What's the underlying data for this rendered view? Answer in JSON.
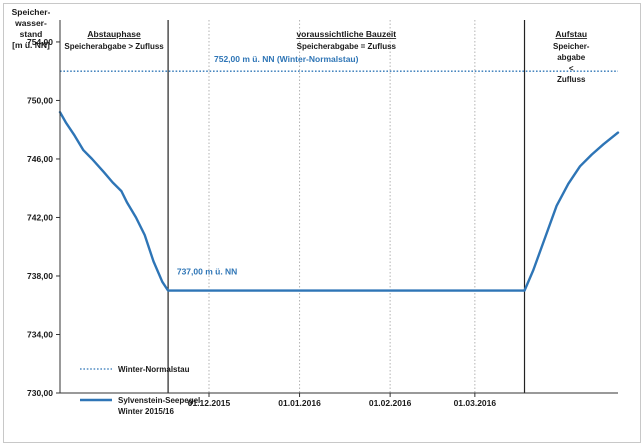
{
  "chart_data": {
    "type": "line",
    "ylabel_lines": [
      "Speicher-",
      "wasser-",
      "stand",
      "[m ü. NN]"
    ],
    "ylim": [
      730,
      755.5
    ],
    "yticks": [
      730,
      734,
      738,
      742,
      746,
      750,
      754
    ],
    "ytick_labels": [
      "730,00",
      "734,00",
      "738,00",
      "742,00",
      "746,00",
      "750,00",
      "754,00"
    ],
    "x_unit": "date",
    "xlim": [
      "2015-10-11",
      "2016-04-19"
    ],
    "xticks": [
      {
        "date": "2015-12-01",
        "label": "01.12.2015"
      },
      {
        "date": "2016-01-01",
        "label": "01.01.2016"
      },
      {
        "date": "2016-02-01",
        "label": "01.02.2016"
      },
      {
        "date": "2016-03-01",
        "label": "01.03.2016"
      }
    ],
    "grid": {
      "vertical": true,
      "horizontal": false
    },
    "phase_boundaries": [
      "2015-11-17",
      "2016-03-18"
    ],
    "phases": [
      {
        "title": "Abstauphase",
        "lines": [
          "Speicherabgabe > Zufluss"
        ],
        "start": "2015-10-11",
        "end": "2015-11-17"
      },
      {
        "title": "voraussichtliche Bauzeit",
        "lines": [
          "Speicherabgabe = Zufluss"
        ],
        "start": "2015-11-17",
        "end": "2016-03-18"
      },
      {
        "title": "Aufstau",
        "lines": [
          "Speicher-",
          "abgabe",
          "<",
          "Zufluss"
        ],
        "start": "2016-03-18",
        "end": "2016-04-19"
      }
    ],
    "reference_line": {
      "y": 752.0,
      "label": "752,00 m ü. NN (Winter-Normalstau)",
      "color": "#2e75b6",
      "style": "dotted"
    },
    "series": [
      {
        "name": "Sylvenstein-Seepegel Winter 2015/16",
        "color": "#2e75b6",
        "points": [
          [
            "2015-10-11",
            749.2
          ],
          [
            "2015-10-13",
            748.5
          ],
          [
            "2015-10-16",
            747.6
          ],
          [
            "2015-10-19",
            746.6
          ],
          [
            "2015-10-22",
            746.0
          ],
          [
            "2015-10-26",
            745.1
          ],
          [
            "2015-10-29",
            744.4
          ],
          [
            "2015-11-01",
            743.8
          ],
          [
            "2015-11-03",
            743.0
          ],
          [
            "2015-11-06",
            742.0
          ],
          [
            "2015-11-09",
            740.8
          ],
          [
            "2015-11-12",
            739.0
          ],
          [
            "2015-11-15",
            737.6
          ],
          [
            "2015-11-17",
            737.0
          ],
          [
            "2016-03-18",
            737.0
          ],
          [
            "2016-03-21",
            738.4
          ],
          [
            "2016-03-25",
            740.6
          ],
          [
            "2016-03-29",
            742.8
          ],
          [
            "2016-04-02",
            744.3
          ],
          [
            "2016-04-06",
            745.5
          ],
          [
            "2016-04-10",
            746.3
          ],
          [
            "2016-04-14",
            747.0
          ],
          [
            "2016-04-19",
            747.8
          ]
        ]
      }
    ],
    "annotations": [
      {
        "text": "737,00 m ü. NN",
        "x": "2015-11-20",
        "y": 738.1
      }
    ],
    "legend": {
      "placement": "bottom-left",
      "entries": [
        {
          "label_lines": [
            "Winter-Normalstau"
          ],
          "style": "dotted",
          "color": "#2e75b6"
        },
        {
          "label_lines": [
            "Sylvenstein-Seepegel",
            "Winter 2015/16"
          ],
          "style": "solid",
          "color": "#2e75b6"
        }
      ]
    }
  }
}
